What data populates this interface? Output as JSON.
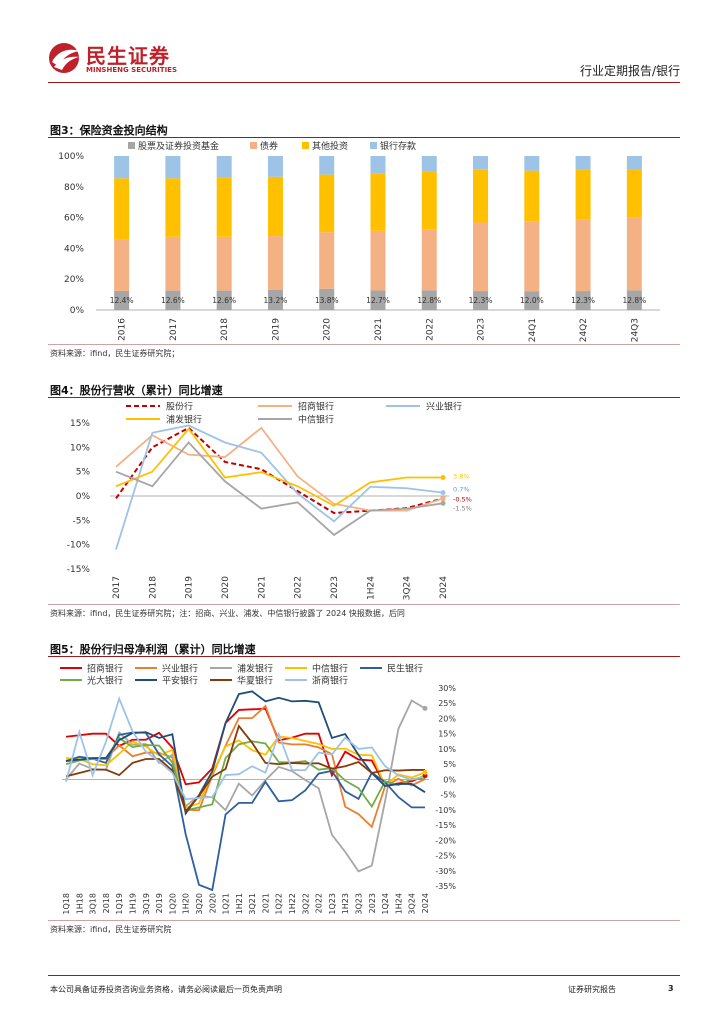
{
  "header": {
    "logo_cn": "民生证券",
    "logo_en": "MINSHENG SECURITIES",
    "report_type": "行业定期报告/银行"
  },
  "footer": {
    "disclaimer": "本公司具备证券投资咨询业务资格，请务必阅读最后一页免责声明",
    "label": "证券研究报告",
    "page_number": "3"
  },
  "figures": {
    "fig3": {
      "title": "图3：保险资金投向结构",
      "source": "资料来源：ifind，民生证券研究院；"
    },
    "fig4": {
      "title": "图4：股份行营收（累计）同比增速",
      "source": "资料来源：ifind，民生证券研究院；注：招商、兴业、浦发、中信银行披露了 2024 快报数据，后同"
    },
    "fig5": {
      "title": "图5：股份行归母净利润（累计）同比增速",
      "source": "资料来源：ifind，民生证券研究院"
    }
  },
  "colors": {
    "brand_red": "#9e1a1a",
    "grey": "#a6a6a6",
    "peach": "#f4b183",
    "gold": "#ffc000",
    "sky": "#9dc3e6"
  },
  "chart_data": [
    {
      "id": "fig3",
      "type": "bar",
      "stacked": true,
      "categories": [
        "2016",
        "2017",
        "2018",
        "2019",
        "2020",
        "2021",
        "2022",
        "2023",
        "24Q1",
        "24Q2",
        "24Q3"
      ],
      "series": [
        {
          "name": "股票及证券投资基金",
          "color": "#a6a6a6",
          "values": [
            12.4,
            12.6,
            12.6,
            13.2,
            13.8,
            12.7,
            12.8,
            12.3,
            12.0,
            12.3,
            12.8
          ]
        },
        {
          "name": "债券",
          "color": "#f4b183",
          "values": [
            33.6,
            34.9,
            34.9,
            34.8,
            36.7,
            38.7,
            39.7,
            44.5,
            45.3,
            46.7,
            47.2
          ]
        },
        {
          "name": "其他投资",
          "color": "#ffc000",
          "values": [
            39.5,
            38.0,
            38.6,
            38.5,
            37.4,
            37.1,
            37.5,
            34.3,
            33.2,
            32.5,
            31.5
          ]
        },
        {
          "name": "银行存款",
          "color": "#9dc3e6",
          "values": [
            14.5,
            14.5,
            13.9,
            13.5,
            12.1,
            11.5,
            10.0,
            8.9,
            9.5,
            8.5,
            8.5
          ]
        }
      ],
      "data_labels": [
        "12.4%",
        "12.6%",
        "12.6%",
        "13.2%",
        "13.8%",
        "12.7%",
        "12.8%",
        "12.3%",
        "12.0%",
        "12.3%",
        "12.8%"
      ],
      "yticks": [
        "0%",
        "20%",
        "40%",
        "60%",
        "80%",
        "100%"
      ],
      "ylim": [
        0,
        100
      ]
    },
    {
      "id": "fig4",
      "type": "line",
      "categories": [
        "2017",
        "2018",
        "2019",
        "2020",
        "2021",
        "2022",
        "2023",
        "1H24",
        "3Q24",
        "2024"
      ],
      "series": [
        {
          "name": "股份行",
          "color": "#c00000",
          "dash": true,
          "values": [
            -0.5,
            10.0,
            14.0,
            7.0,
            5.5,
            1.0,
            -3.5,
            -3.0,
            -2.5,
            -0.5
          ]
        },
        {
          "name": "招商银行",
          "color": "#f4b183",
          "values": [
            6.0,
            12.5,
            8.5,
            8.0,
            14.0,
            4.0,
            -1.6,
            -3.0,
            -3.0,
            -0.5
          ]
        },
        {
          "name": "兴业银行",
          "color": "#9dc3e6",
          "values": [
            -11.0,
            13.0,
            14.5,
            11.0,
            8.9,
            0.5,
            -5.2,
            1.9,
            1.6,
            0.7
          ]
        },
        {
          "name": "浦发银行",
          "color": "#ffc000",
          "values": [
            2.0,
            5.0,
            13.8,
            3.8,
            4.9,
            2.0,
            -2.0,
            2.8,
            3.8,
            3.8
          ]
        },
        {
          "name": "中信银行",
          "color": "#a6a6a6",
          "values": [
            5.0,
            2.0,
            11.0,
            3.0,
            -2.6,
            -1.3,
            -8.0,
            -3.0,
            -2.6,
            -1.5
          ]
        }
      ],
      "end_labels": [
        "3.8%",
        "0.7%",
        "-0.5%",
        "-1.5%"
      ],
      "yticks": [
        "15%",
        "10%",
        "5%",
        "0%",
        "-5%",
        "-10%",
        "-15%"
      ],
      "ylim": [
        -15,
        15
      ]
    },
    {
      "id": "fig5",
      "type": "line",
      "categories": [
        "1Q18",
        "1H18",
        "3Q18",
        "2018",
        "1Q19",
        "1H19",
        "3Q19",
        "2019",
        "1Q20",
        "1H20",
        "3Q20",
        "2020",
        "1Q21",
        "1H21",
        "3Q21",
        "2021",
        "1Q22",
        "1H22",
        "3Q22",
        "2022",
        "1Q23",
        "1H23",
        "3Q23",
        "2023",
        "1Q24",
        "1H24",
        "3Q24",
        "2024"
      ],
      "series": [
        {
          "name": "招商银行",
          "color": "#e00000",
          "values": [
            14,
            14.5,
            15,
            15,
            11,
            13,
            13,
            15.3,
            10.4,
            -1.6,
            -1,
            3.6,
            18.5,
            22.8,
            23,
            23.2,
            12.8,
            13.7,
            15,
            15,
            1.3,
            9.1,
            6.5,
            6.2,
            -2,
            -1.3,
            -0.6,
            1.2
          ]
        },
        {
          "name": "兴业银行",
          "color": "#ed7d31",
          "values": [
            6,
            6.3,
            6.9,
            6.9,
            11.2,
            7.6,
            8.8,
            8.7,
            7.2,
            -10,
            -10.1,
            1.2,
            11.1,
            20.1,
            20.1,
            24.1,
            12.1,
            11.5,
            11.5,
            10.5,
            8.3,
            -9,
            -11.4,
            -15.6,
            -2.2,
            0.2,
            -2,
            0.1
          ]
        },
        {
          "name": "浦发银行",
          "color": "#a6a6a6",
          "values": [
            0,
            5.2,
            3.4,
            3.1,
            15.4,
            11.4,
            11.6,
            5.4,
            8.1,
            -8.8,
            -5.3,
            -5.9,
            -10.1,
            -1.4,
            -5.3,
            -0.3,
            4.1,
            2.7,
            -0.2,
            -2.9,
            -18.2,
            -23.8,
            -30.2,
            -28.3,
            -7.1,
            16.6,
            25.9,
            23.3
          ]
        },
        {
          "name": "中信银行",
          "color": "#ffc000",
          "values": [
            7,
            6.6,
            5,
            4.6,
            8.4,
            12.4,
            10.8,
            7.9,
            9.7,
            -9.3,
            -7.9,
            2.0,
            10.8,
            12.8,
            9.6,
            8.1,
            14.1,
            13.6,
            12.6,
            11.6,
            10,
            10.1,
            8.1,
            7.9,
            -2,
            1.6,
            0.6,
            2.3
          ]
        },
        {
          "name": "民生银行",
          "color": "#2e5f9e",
          "values": [
            6,
            7.4,
            6.8,
            5.4,
            14.6,
            15.4,
            15.3,
            8.2,
            4.3,
            -18,
            -34.6,
            -36.3,
            -11.5,
            -7.7,
            -7.7,
            -0.8,
            -7.2,
            -6.8,
            -3.6,
            1.9,
            2.8,
            -3.9,
            -6.4,
            2.2,
            -0.9,
            -5.8,
            -9.2,
            -9.2
          ]
        },
        {
          "name": "光大银行",
          "color": "#70ad47",
          "values": [
            5,
            6.2,
            6.7,
            6.7,
            13.6,
            10.6,
            11.3,
            11.1,
            5.5,
            -10.2,
            -9.2,
            -8.2,
            7.0,
            11.5,
            12.5,
            11.8,
            5.7,
            5.5,
            6.0,
            3.2,
            3.7,
            -0.4,
            -2.9,
            -8.9,
            -0.6,
            -1.9,
            0.1,
            0.1
          ]
        },
        {
          "name": "平安银行",
          "color": "#1f4e79",
          "values": [
            6.1,
            6.5,
            7.0,
            7.0,
            12.9,
            15.2,
            15.5,
            13.6,
            14.8,
            -11.2,
            -5.2,
            2.6,
            18.5,
            28.0,
            28.9,
            25.6,
            26.8,
            25.6,
            25.8,
            25.3,
            13.6,
            14.9,
            8.0,
            2.1,
            -2.2,
            -1.5,
            -1.5,
            -4.2
          ]
        },
        {
          "name": "华夏银行",
          "color": "#843c0c",
          "values": [
            1,
            2.1,
            3.2,
            3.2,
            1.4,
            5.4,
            6.7,
            6.7,
            2.9,
            -10.5,
            -5.5,
            0.9,
            3.4,
            17.5,
            12.0,
            5.4,
            5.0,
            5.4,
            5.2,
            5.3,
            3.5,
            4.3,
            5.7,
            2.1,
            3.0,
            2.9,
            3.1,
            3.1
          ]
        },
        {
          "name": "浙商银行",
          "color": "#9dc3e6",
          "values": [
            -0.8,
            15.6,
            1.4,
            12.3,
            26.5,
            15.8,
            9.1,
            5.9,
            2.1,
            -6.5,
            -6.1,
            -5.8,
            1.4,
            1.7,
            4.3,
            2.2,
            14.9,
            3.1,
            3.0,
            8.8,
            8.2,
            13.7,
            10.0,
            10.5,
            4.3,
            1.3,
            -0.1,
            1.1
          ]
        }
      ],
      "yticks": [
        "30%",
        "25%",
        "20%",
        "15%",
        "10%",
        "5%",
        "0%",
        "-5%",
        "-10%",
        "-15%",
        "-20%",
        "-25%",
        "-30%",
        "-35%"
      ],
      "ylim": [
        -35,
        30
      ]
    }
  ]
}
